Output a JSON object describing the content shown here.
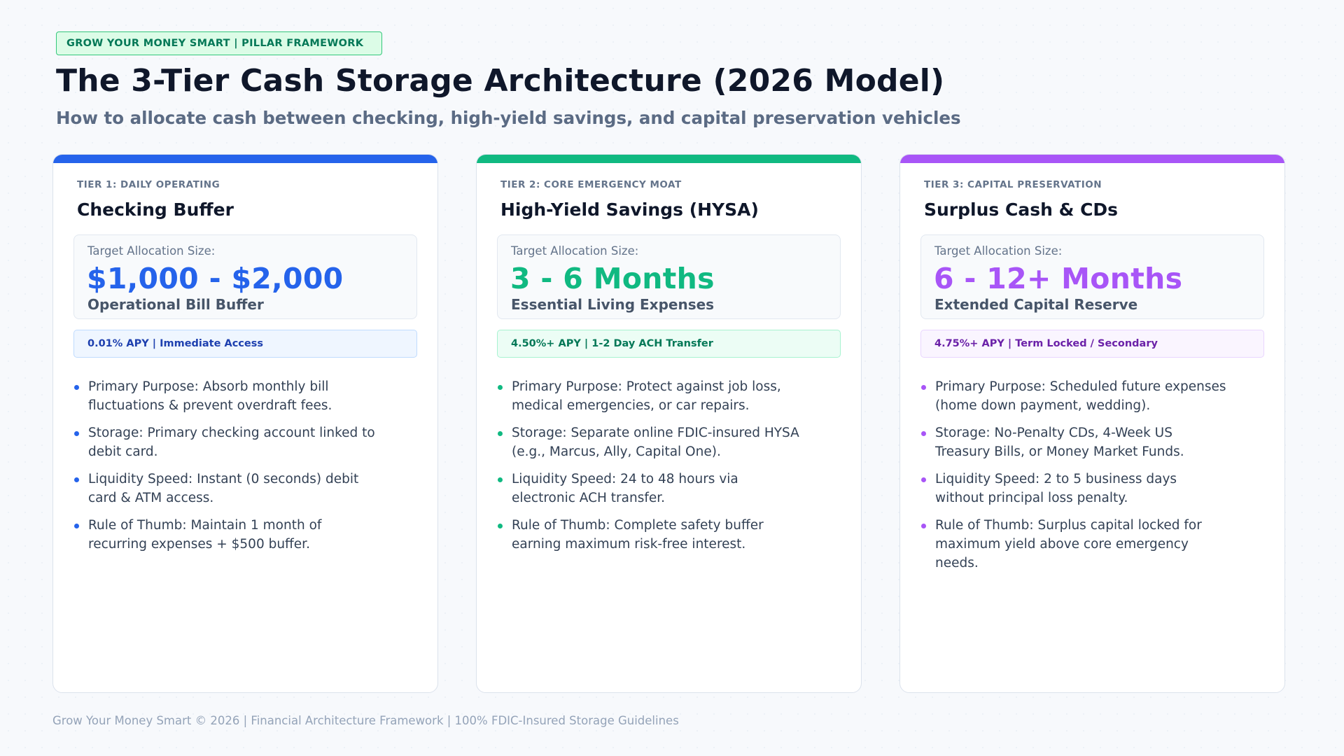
{
  "header": {
    "badge": "GROW YOUR MONEY SMART | PILLAR FRAMEWORK",
    "title": "The 3-Tier Cash Storage Architecture (2026 Model)",
    "subtitle": "How to allocate cash between checking, high-yield savings, and capital preservation vehicles"
  },
  "tiers": [
    {
      "label": "TIER 1: DAILY OPERATING",
      "title": "Checking Buffer",
      "alloc_label": "Target Allocation Size:",
      "alloc_value": "$1,000 - $2,000",
      "alloc_sub": "Operational Bill Buffer",
      "apy": "0.01% APY | Immediate Access",
      "accent": "#2563eb",
      "bullets": [
        "Primary Purpose: Absorb monthly bill fluctuations & prevent overdraft fees.",
        "Storage: Primary checking account linked to debit card.",
        "Liquidity Speed: Instant (0 seconds) debit card & ATM access.",
        "Rule of Thumb: Maintain 1 month of recurring expenses + $500 buffer."
      ]
    },
    {
      "label": "TIER 2: CORE EMERGENCY MOAT",
      "title": "High-Yield Savings (HYSA)",
      "alloc_label": "Target Allocation Size:",
      "alloc_value": "3 - 6 Months",
      "alloc_sub": "Essential Living Expenses",
      "apy": "4.50%+ APY | 1-2 Day ACH Transfer",
      "accent": "#10b981",
      "bullets": [
        "Primary Purpose: Protect against job loss, medical emergencies, or car repairs.",
        "Storage: Separate online FDIC-insured HYSA (e.g., Marcus, Ally, Capital One).",
        "Liquidity Speed: 24 to 48 hours via electronic ACH transfer.",
        "Rule of Thumb: Complete safety buffer earning maximum risk-free interest."
      ]
    },
    {
      "label": "TIER 3: CAPITAL PRESERVATION",
      "title": "Surplus Cash & CDs",
      "alloc_label": "Target Allocation Size:",
      "alloc_value": "6 - 12+ Months",
      "alloc_sub": "Extended Capital Reserve",
      "apy": "4.75%+ APY | Term Locked / Secondary",
      "accent": "#a855f7",
      "bullets": [
        "Primary Purpose: Scheduled future expenses (home down payment, wedding).",
        "Storage: No-Penalty CDs, 4-Week US Treasury Bills, or Money Market Funds.",
        "Liquidity Speed: 2 to 5 business days without principal loss penalty.",
        "Rule of Thumb: Surplus capital locked for maximum yield above core emergency needs."
      ]
    }
  ],
  "footer": "Grow Your Money Smart © 2026 | Financial Architecture Framework | 100% FDIC-Insured Storage Guidelines"
}
